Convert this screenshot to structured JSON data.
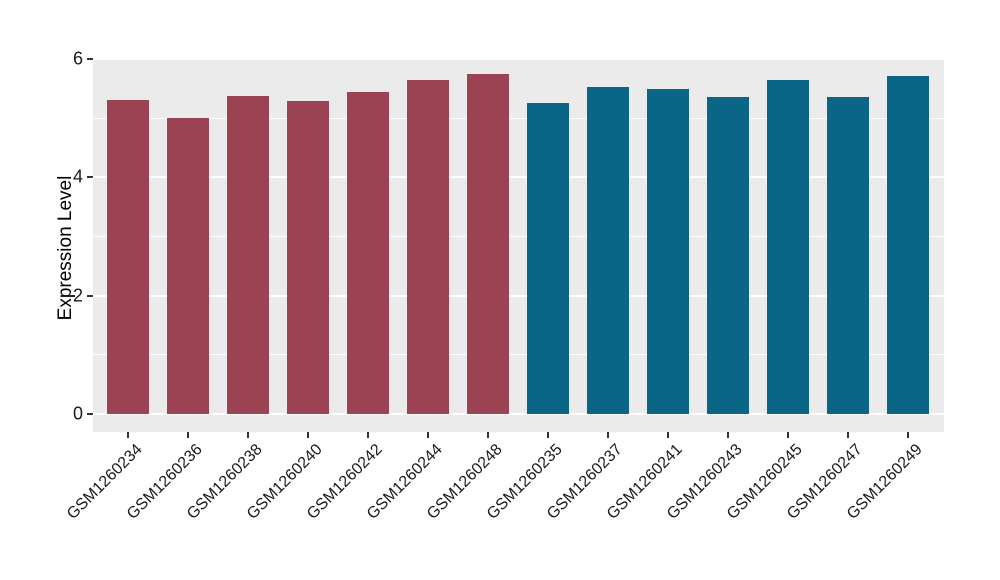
{
  "page": {
    "background_color": "#ffffff"
  },
  "chart_data": {
    "type": "bar",
    "title": "",
    "xlabel": "",
    "ylabel": "Expression Level",
    "ylim": [
      0,
      6
    ],
    "yticks": [
      0,
      2,
      4,
      6
    ],
    "yticks_minor": [
      1,
      3,
      5
    ],
    "grid": true,
    "legend_position": "none",
    "panel_background": "#EBEBEB",
    "gridline_color": "#FFFFFF",
    "axis_text_color": "#1a1a1a",
    "tick_mark_color": "#333333",
    "group_colors": {
      "group1": "#9B4253",
      "group2": "#0A6587"
    },
    "categories": [
      "GSM1260234",
      "GSM1260236",
      "GSM1260238",
      "GSM1260240",
      "GSM1260242",
      "GSM1260244",
      "GSM1260248",
      "GSM1260235",
      "GSM1260237",
      "GSM1260241",
      "GSM1260243",
      "GSM1260245",
      "GSM1260247",
      "GSM1260249"
    ],
    "bars": [
      {
        "label": "GSM1260234",
        "value": 5.31,
        "group": "group1"
      },
      {
        "label": "GSM1260236",
        "value": 5.0,
        "group": "group1"
      },
      {
        "label": "GSM1260238",
        "value": 5.38,
        "group": "group1"
      },
      {
        "label": "GSM1260240",
        "value": 5.29,
        "group": "group1"
      },
      {
        "label": "GSM1260242",
        "value": 5.44,
        "group": "group1"
      },
      {
        "label": "GSM1260244",
        "value": 5.65,
        "group": "group1"
      },
      {
        "label": "GSM1260248",
        "value": 5.74,
        "group": "group1"
      },
      {
        "label": "GSM1260235",
        "value": 5.25,
        "group": "group2"
      },
      {
        "label": "GSM1260237",
        "value": 5.52,
        "group": "group2"
      },
      {
        "label": "GSM1260241",
        "value": 5.5,
        "group": "group2"
      },
      {
        "label": "GSM1260243",
        "value": 5.35,
        "group": "group2"
      },
      {
        "label": "GSM1260245",
        "value": 5.65,
        "group": "group2"
      },
      {
        "label": "GSM1260247",
        "value": 5.36,
        "group": "group2"
      },
      {
        "label": "GSM1260249",
        "value": 5.72,
        "group": "group2"
      }
    ]
  }
}
